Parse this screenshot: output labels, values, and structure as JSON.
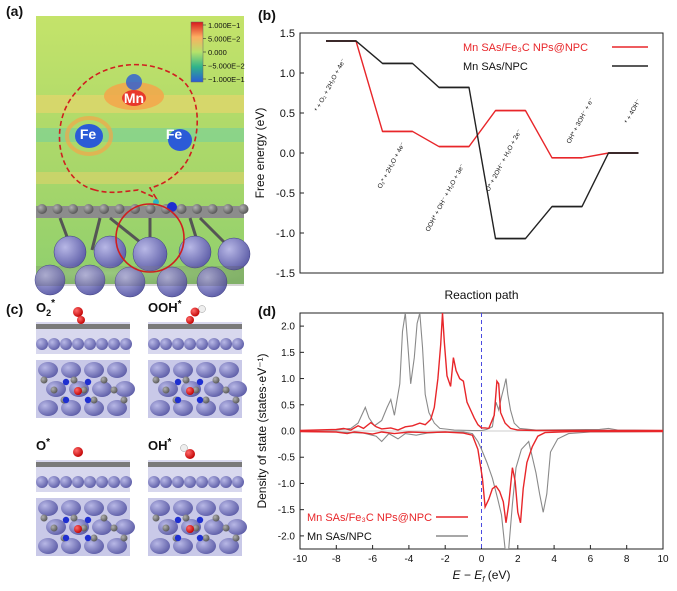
{
  "panels": {
    "a": {
      "label": "(a)",
      "atoms": [
        "Mn",
        "Fe",
        "Fe"
      ],
      "colorbar": {
        "ticks": [
          "1.000E−1",
          "5.000E−2",
          "0.000",
          "−5.000E−2",
          "−1.000E−1"
        ],
        "colors": [
          "#d7191c",
          "#fdae61",
          "#a6d96a",
          "#1a9641",
          "#2b5bd7"
        ]
      }
    },
    "c": {
      "label": "(c)",
      "structures": [
        {
          "base": "O",
          "sup": "2",
          "star": "*"
        },
        {
          "base": "OOH",
          "sup": "",
          "star": "*"
        },
        {
          "base": "O",
          "sup": "",
          "star": "*"
        },
        {
          "base": "OH",
          "sup": "",
          "star": "*"
        }
      ]
    }
  },
  "chart_data": [
    {
      "panel": "(b)",
      "type": "line",
      "style": "step",
      "xlabel": "Reaction path",
      "ylabel": "Free energy (eV)",
      "ylim": [
        -1.5,
        1.5
      ],
      "yticks": [
        "1.5",
        "1.0",
        "0.5",
        "0.0",
        "-0.5",
        "-1.0",
        "-1.5"
      ],
      "steps": [
        "* + O₂ + 2H₂O + 4e⁻",
        "O₂* + 2H₂O + 4e⁻",
        "OOH* + OH⁻ + H₂O + 3e⁻",
        "O* + 2OH⁻ + H₂O + 2e⁻",
        "OH* + 3OH⁻ + e⁻",
        "* + 4OH⁻"
      ],
      "series": [
        {
          "name": "Mn SAs/Fe₃C NPs@NPC",
          "color": "#e8262a",
          "values": [
            1.4,
            0.27,
            0.08,
            0.53,
            -0.06,
            0.0
          ]
        },
        {
          "name": "Mn SAs/NPC",
          "color": "#222222",
          "values": [
            1.4,
            1.12,
            0.82,
            -1.07,
            -0.67,
            0.0
          ]
        }
      ]
    },
    {
      "panel": "(d)",
      "type": "line",
      "xlabel": "E − E",
      "xlabel_sub": "f",
      "xlabel_unit": " (eV)",
      "ylabel": "Density of state (states·eV⁻¹)",
      "xlim": [
        -10,
        10
      ],
      "ylim": [
        -2.25,
        2.25
      ],
      "xticks": [
        "-10",
        "-8",
        "-6",
        "-4",
        "-2",
        "0",
        "2",
        "4",
        "6",
        "8",
        "10"
      ],
      "yticks": [
        "2.0",
        "1.5",
        "1.0",
        "0.5",
        "0.0",
        "-0.5",
        "-1.0",
        "-1.5",
        "-2.0"
      ],
      "fermi_level": 0,
      "series": [
        {
          "name": "Mn SAs/Fe₃C NPs@NPC",
          "color": "#e8262a",
          "up": [
            [
              -10,
              0.01
            ],
            [
              -9,
              0.02
            ],
            [
              -8,
              0.03
            ],
            [
              -7.6,
              0.05
            ],
            [
              -7.2,
              0.02
            ],
            [
              -6.8,
              0.1
            ],
            [
              -6.5,
              0.05
            ],
            [
              -6.1,
              0.16
            ],
            [
              -5.8,
              0.08
            ],
            [
              -5.5,
              0.04
            ],
            [
              -5.0,
              0.06
            ],
            [
              -4.6,
              0.02
            ],
            [
              -4.2,
              0.08
            ],
            [
              -3.8,
              0.1
            ],
            [
              -3.4,
              0.15
            ],
            [
              -3.1,
              0.12
            ],
            [
              -2.8,
              0.22
            ],
            [
              -2.6,
              0.45
            ],
            [
              -2.4,
              1.0
            ],
            [
              -2.25,
              1.65
            ],
            [
              -2.15,
              2.25
            ],
            [
              -2.05,
              1.7
            ],
            [
              -1.9,
              1.05
            ],
            [
              -1.7,
              0.85
            ],
            [
              -1.55,
              1.4
            ],
            [
              -1.4,
              1.15
            ],
            [
              -1.2,
              1.0
            ],
            [
              -1.0,
              0.95
            ],
            [
              -0.8,
              0.55
            ],
            [
              -0.6,
              0.4
            ],
            [
              -0.4,
              0.25
            ],
            [
              -0.2,
              0.12
            ],
            [
              0,
              0.06
            ],
            [
              0.2,
              0.06
            ],
            [
              0.4,
              0.05
            ],
            [
              0.7,
              0.3
            ],
            [
              0.85,
              0.95
            ],
            [
              0.95,
              0.9
            ],
            [
              1.05,
              0.35
            ],
            [
              1.3,
              0.15
            ],
            [
              1.6,
              0.05
            ],
            [
              2.0,
              0.02
            ],
            [
              3,
              0.01
            ],
            [
              10,
              0.01
            ]
          ],
          "down": [
            [
              -10,
              -0.01
            ],
            [
              -8,
              -0.02
            ],
            [
              -7.4,
              -0.05
            ],
            [
              -7.0,
              -0.02
            ],
            [
              -6.4,
              -0.04
            ],
            [
              -6.0,
              -0.06
            ],
            [
              -5.5,
              -0.02
            ],
            [
              -4.8,
              -0.05
            ],
            [
              -4.0,
              -0.02
            ],
            [
              -3.0,
              -0.03
            ],
            [
              -2.0,
              -0.02
            ],
            [
              -1.0,
              -0.04
            ],
            [
              -0.5,
              -0.08
            ],
            [
              -0.2,
              -0.35
            ],
            [
              0.05,
              -0.9
            ],
            [
              0.2,
              -1.45
            ],
            [
              0.4,
              -1.3
            ],
            [
              0.6,
              -1.1
            ],
            [
              0.8,
              -1.05
            ],
            [
              1.0,
              -1.15
            ],
            [
              1.2,
              -1.35
            ],
            [
              1.35,
              -1.75
            ],
            [
              1.5,
              -1.4
            ],
            [
              1.7,
              -0.7
            ],
            [
              1.85,
              -0.95
            ],
            [
              2.0,
              -1.55
            ],
            [
              2.15,
              -1.75
            ],
            [
              2.3,
              -1.1
            ],
            [
              2.5,
              -0.6
            ],
            [
              2.8,
              -0.3
            ],
            [
              3.1,
              -0.1
            ],
            [
              3.5,
              -0.03
            ],
            [
              5,
              -0.01
            ],
            [
              10,
              -0.01
            ]
          ]
        },
        {
          "name": "Mn SAs/NPC",
          "color": "#8a8a8a",
          "up": [
            [
              -10,
              0.01
            ],
            [
              -8,
              0.02
            ],
            [
              -7.2,
              0.05
            ],
            [
              -6.8,
              0.15
            ],
            [
              -6.4,
              0.45
            ],
            [
              -6.2,
              0.25
            ],
            [
              -5.9,
              0.1
            ],
            [
              -5.5,
              0.2
            ],
            [
              -5.2,
              0.45
            ],
            [
              -5.0,
              0.6
            ],
            [
              -4.8,
              0.3
            ],
            [
              -4.5,
              0.9
            ],
            [
              -4.35,
              1.9
            ],
            [
              -4.2,
              2.25
            ],
            [
              -4.05,
              1.6
            ],
            [
              -3.9,
              0.9
            ],
            [
              -3.7,
              1.4
            ],
            [
              -3.55,
              2.05
            ],
            [
              -3.4,
              2.25
            ],
            [
              -3.25,
              1.6
            ],
            [
              -3.1,
              0.7
            ],
            [
              -2.9,
              0.35
            ],
            [
              -2.6,
              0.15
            ],
            [
              -2.3,
              0.05
            ],
            [
              -1.5,
              0.02
            ],
            [
              -0.5,
              0.01
            ],
            [
              0,
              0.01
            ],
            [
              0.3,
              0.03
            ],
            [
              0.6,
              0.08
            ],
            [
              0.8,
              0.55
            ],
            [
              0.95,
              0.4
            ],
            [
              1.1,
              0.65
            ],
            [
              1.25,
              0.85
            ],
            [
              1.35,
              1.0
            ],
            [
              1.45,
              0.7
            ],
            [
              1.6,
              0.4
            ],
            [
              1.8,
              0.15
            ],
            [
              2.1,
              0.05
            ],
            [
              3,
              0.02
            ],
            [
              6.5,
              0.03
            ],
            [
              7,
              0.05
            ],
            [
              7.5,
              0.02
            ],
            [
              10,
              0.01
            ]
          ],
          "down": [
            [
              -10,
              -0.01
            ],
            [
              -8,
              -0.02
            ],
            [
              -6.5,
              -0.04
            ],
            [
              -5.8,
              -0.1
            ],
            [
              -5.5,
              -0.2
            ],
            [
              -5.1,
              -0.05
            ],
            [
              -4.6,
              -0.15
            ],
            [
              -4.2,
              -0.05
            ],
            [
              -3.6,
              -0.08
            ],
            [
              -3.0,
              -0.04
            ],
            [
              -2.0,
              -0.02
            ],
            [
              -1.0,
              -0.02
            ],
            [
              -0.5,
              -0.05
            ],
            [
              -0.2,
              -0.2
            ],
            [
              0,
              -0.35
            ],
            [
              0.3,
              -0.6
            ],
            [
              0.6,
              -0.9
            ],
            [
              0.9,
              -1.3
            ],
            [
              1.1,
              -1.6
            ],
            [
              1.3,
              -2.25
            ],
            [
              1.5,
              -2.25
            ],
            [
              1.7,
              -1.4
            ],
            [
              1.9,
              -0.7
            ],
            [
              2.2,
              -0.35
            ],
            [
              2.6,
              -0.2
            ],
            [
              3.0,
              -0.8
            ],
            [
              3.2,
              -1.2
            ],
            [
              3.4,
              -1.55
            ],
            [
              3.6,
              -1.2
            ],
            [
              3.8,
              -0.4
            ],
            [
              4.2,
              -0.15
            ],
            [
              4.8,
              -0.05
            ],
            [
              6,
              -0.02
            ],
            [
              10,
              -0.01
            ]
          ]
        }
      ]
    }
  ]
}
